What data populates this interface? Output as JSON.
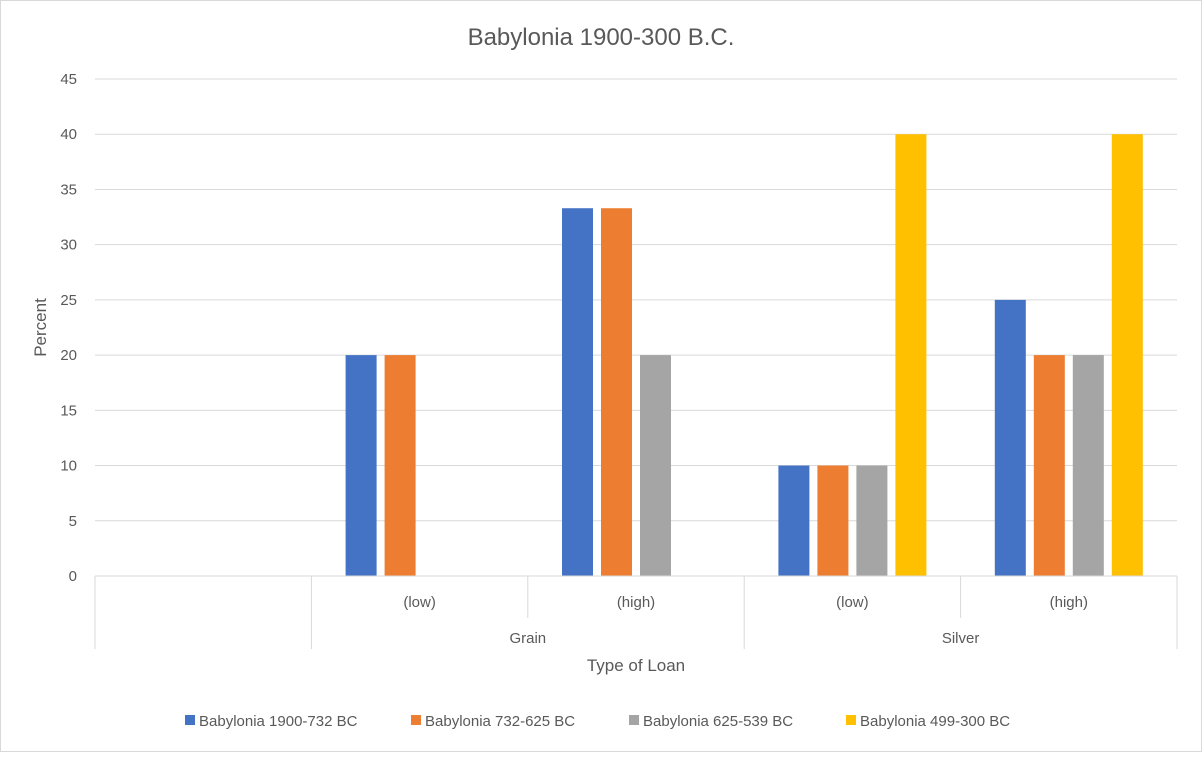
{
  "chart_data": {
    "type": "bar",
    "title": "Babylonia 1900-300 B.C.",
    "xlabel": "Type of Loan",
    "ylabel": "Percent",
    "ylim": [
      0,
      45
    ],
    "yticks": [
      0,
      5,
      10,
      15,
      20,
      25,
      30,
      35,
      40,
      45
    ],
    "grid": true,
    "legend_position": "bottom",
    "groups": [
      {
        "label": "",
        "categories": [
          ""
        ]
      },
      {
        "label": "Grain",
        "categories": [
          "(low)",
          "(high)"
        ]
      },
      {
        "label": "Silver",
        "categories": [
          "(low)",
          "(high)"
        ]
      }
    ],
    "series": [
      {
        "name": "Babylonia 1900-732 BC",
        "color": "#4472C4",
        "values": [
          null,
          20,
          33.3,
          10,
          25
        ]
      },
      {
        "name": "Babylonia 732-625 BC",
        "color": "#ED7D31",
        "values": [
          null,
          20,
          33.3,
          10,
          20
        ]
      },
      {
        "name": "Babylonia 625-539 BC",
        "color": "#A5A5A5",
        "values": [
          null,
          null,
          20,
          10,
          20
        ]
      },
      {
        "name": "Babylonia 499-300 BC",
        "color": "#FFC000",
        "values": [
          null,
          null,
          null,
          40,
          40
        ]
      }
    ]
  }
}
